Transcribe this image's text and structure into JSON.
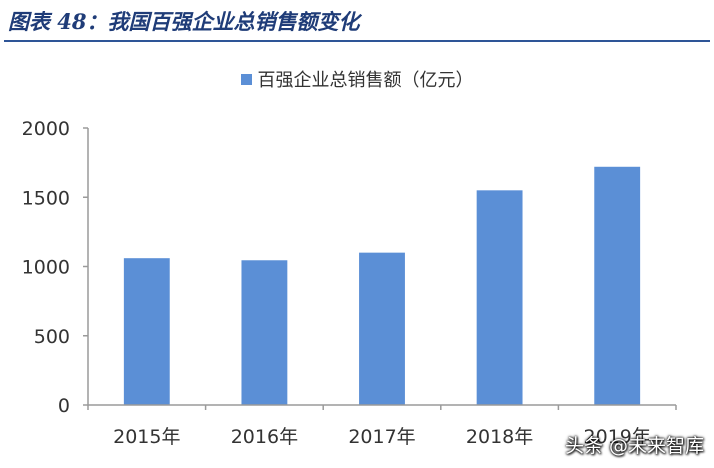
{
  "header": {
    "title": "图表 48：我国百强企业总销售额变化"
  },
  "watermark": {
    "text": "头条 @未来智库"
  },
  "colors": {
    "bar": "#5b8fd6",
    "title": "#1f3c78",
    "rule": "#2e5597"
  },
  "chart_data": {
    "type": "bar",
    "title": "",
    "xlabel": "",
    "ylabel": "",
    "categories": [
      "2015年",
      "2016年",
      "2017年",
      "2018年",
      "2019年"
    ],
    "series": [
      {
        "name": "百强企业总销售额（亿元）",
        "values": [
          1060,
          1045,
          1100,
          1550,
          1720
        ]
      }
    ],
    "ylim": [
      0,
      2000
    ],
    "yticks": [
      0,
      500,
      1000,
      1500,
      2000
    ],
    "grid": false,
    "legend_position": "top"
  }
}
